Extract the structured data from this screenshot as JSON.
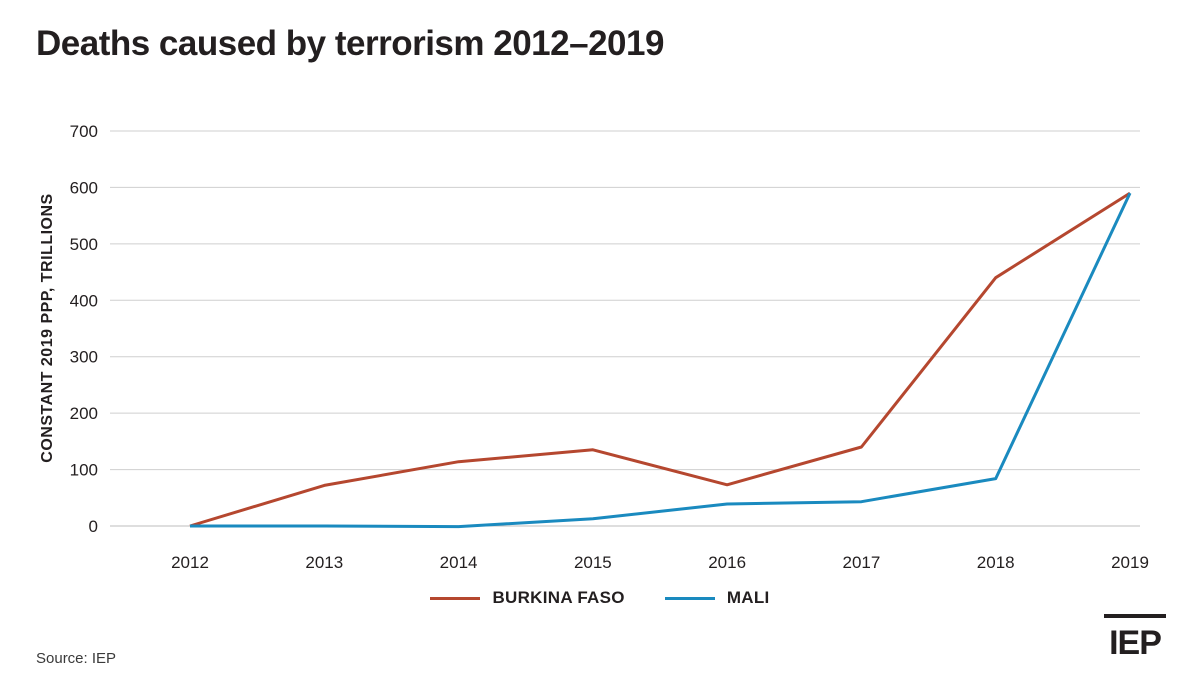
{
  "header": {
    "title": "Deaths caused by terrorism 2012–2019"
  },
  "chart_data": {
    "type": "line",
    "title": "Deaths caused by terrorism 2012–2019",
    "xlabel": "",
    "ylabel": "CONSTANT 2019 PPP, TRILLIONS",
    "x": [
      "2012",
      "2013",
      "2014",
      "2015",
      "2016",
      "2017",
      "2018",
      "2019"
    ],
    "ylim": [
      0,
      700
    ],
    "yticks": [
      0,
      100,
      200,
      300,
      400,
      500,
      600,
      700
    ],
    "grid": true,
    "legend_position": "bottom",
    "series": [
      {
        "name": "BURKINA FASO",
        "color": "#b5472f",
        "values": [
          0,
          72,
          114,
          135,
          73,
          140,
          440,
          590
        ]
      },
      {
        "name": "MALI",
        "color": "#1a8abf",
        "values": [
          0,
          0,
          -1,
          13,
          39,
          43,
          84,
          590
        ]
      }
    ]
  },
  "footer": {
    "source": "Source: IEP",
    "logo_text": "IEP"
  }
}
